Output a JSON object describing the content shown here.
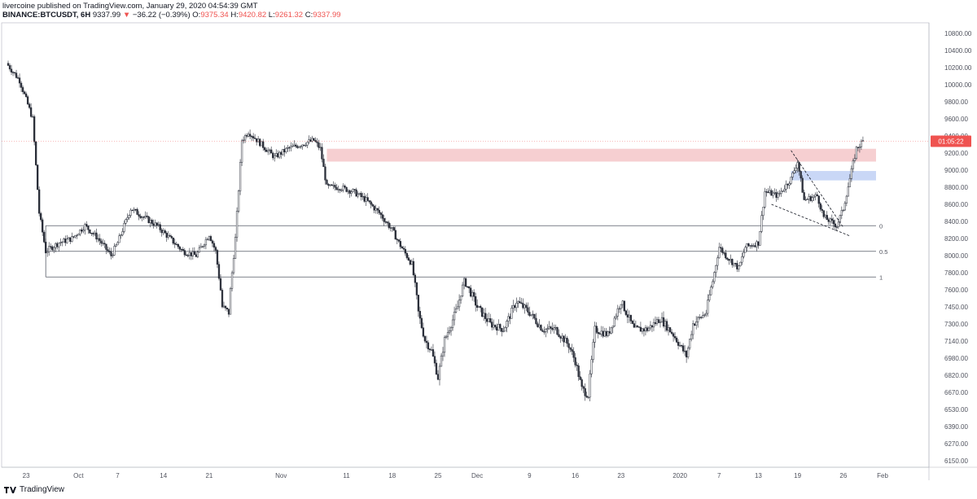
{
  "header": {
    "publisher": "livercoine published on TradingView.com, January 29, 2020 04:54:39 GMT",
    "symbol": "BINANCE:BTCUSDT, 6H",
    "last": "9337.99",
    "change_arrow": "▼",
    "change": "−36.22 (−0.39%)",
    "o_label": "O:",
    "o_value": "9375.34",
    "h_label": "H:",
    "h_value": "9420.82",
    "l_label": "L:",
    "l_value": "9261.32",
    "c_label": "C:",
    "c_value": "9337.99"
  },
  "footer": {
    "brand": "TradingView",
    "logo_icon": "tradingview-logo-icon"
  },
  "price_badge": "01:05:22",
  "colors": {
    "accent_down": "#ef5350",
    "candle": "#2a2e39",
    "resistance": "#f4c7c9",
    "support": "#c3d3f5",
    "grid": "#e6e8eb"
  },
  "chart_data": {
    "type": "candlestick",
    "title": "",
    "xlabel": "",
    "ylabel": "",
    "y_axis_side": "right",
    "ylim": [
      6150,
      10950
    ],
    "yticks": [
      "10800.00",
      "10400.00",
      "10200.00",
      "10000.00",
      "9800.00",
      "9600.00",
      "9400.00",
      "9200.00",
      "9000.00",
      "8800.00",
      "8600.00",
      "8400.00",
      "8200.00",
      "8000.00",
      "7800.00",
      "7600.00",
      "7450.00",
      "7300.00",
      "7140.00",
      "6980.00",
      "6820.00",
      "6670.00",
      "6530.00",
      "6390.00",
      "6270.00",
      "6150.00"
    ],
    "yticks_values": [
      10800,
      10400,
      10200,
      10000,
      9800,
      9600,
      9400,
      9200,
      9000,
      8800,
      8600,
      8400,
      8200,
      8000,
      7800,
      7600,
      7450,
      7300,
      7140,
      6980,
      6820,
      6670,
      6530,
      6390,
      6270,
      6150
    ],
    "xticks": [
      "23",
      "Oct",
      "7",
      "14",
      "21",
      "Nov",
      "11",
      "18",
      "25",
      "Dec",
      "9",
      "16",
      "23",
      "2020",
      "7",
      "13",
      "19",
      "26",
      "Feb"
    ],
    "xticks_dates": [
      "2019-09-23",
      "2019-10-01",
      "2019-10-07",
      "2019-10-14",
      "2019-10-21",
      "2019-11-01",
      "2019-11-11",
      "2019-11-18",
      "2019-11-25",
      "2019-12-01",
      "2019-12-09",
      "2019-12-16",
      "2019-12-23",
      "2020-01-01",
      "2020-01-07",
      "2020-01-13",
      "2020-01-19",
      "2020-01-26",
      "2020-02-01"
    ],
    "series": [
      {
        "close_path": [
          [
            "2019-09-20",
            10250
          ],
          [
            "2019-09-22",
            10050
          ],
          [
            "2019-09-24",
            9600
          ],
          [
            "2019-09-25",
            8500
          ],
          [
            "2019-09-26",
            8050
          ],
          [
            "2019-09-28",
            8150
          ],
          [
            "2019-09-30",
            8200
          ],
          [
            "2019-10-02",
            8350
          ],
          [
            "2019-10-04",
            8200
          ],
          [
            "2019-10-06",
            8000
          ],
          [
            "2019-10-07",
            8150
          ],
          [
            "2019-10-09",
            8550
          ],
          [
            "2019-10-11",
            8450
          ],
          [
            "2019-10-13",
            8350
          ],
          [
            "2019-10-15",
            8200
          ],
          [
            "2019-10-17",
            8050
          ],
          [
            "2019-10-19",
            8000
          ],
          [
            "2019-10-21",
            8250
          ],
          [
            "2019-10-22",
            8050
          ],
          [
            "2019-10-23",
            7450
          ],
          [
            "2019-10-24",
            7400
          ],
          [
            "2019-10-25",
            8200
          ],
          [
            "2019-10-26",
            9350
          ],
          [
            "2019-10-27",
            9450
          ],
          [
            "2019-10-29",
            9300
          ],
          [
            "2019-10-31",
            9150
          ],
          [
            "2019-11-02",
            9250
          ],
          [
            "2019-11-04",
            9300
          ],
          [
            "2019-11-06",
            9350
          ],
          [
            "2019-11-07",
            9250
          ],
          [
            "2019-11-08",
            8800
          ],
          [
            "2019-11-10",
            8800
          ],
          [
            "2019-11-12",
            8750
          ],
          [
            "2019-11-14",
            8650
          ],
          [
            "2019-11-16",
            8500
          ],
          [
            "2019-11-18",
            8300
          ],
          [
            "2019-11-19",
            8150
          ],
          [
            "2019-11-21",
            7900
          ],
          [
            "2019-11-22",
            7400
          ],
          [
            "2019-11-23",
            7150
          ],
          [
            "2019-11-24",
            7050
          ],
          [
            "2019-11-25",
            6800
          ],
          [
            "2019-11-26",
            7150
          ],
          [
            "2019-11-28",
            7450
          ],
          [
            "2019-11-29",
            7700
          ],
          [
            "2019-12-01",
            7450
          ],
          [
            "2019-12-03",
            7300
          ],
          [
            "2019-12-05",
            7250
          ],
          [
            "2019-12-07",
            7500
          ],
          [
            "2019-12-09",
            7400
          ],
          [
            "2019-12-11",
            7250
          ],
          [
            "2019-12-13",
            7250
          ],
          [
            "2019-12-15",
            7100
          ],
          [
            "2019-12-16",
            6950
          ],
          [
            "2019-12-17",
            6700
          ],
          [
            "2019-12-18",
            6650
          ],
          [
            "2019-12-19",
            7250
          ],
          [
            "2019-12-21",
            7200
          ],
          [
            "2019-12-23",
            7500
          ],
          [
            "2019-12-25",
            7250
          ],
          [
            "2019-12-27",
            7250
          ],
          [
            "2019-12-29",
            7350
          ],
          [
            "2019-12-31",
            7200
          ],
          [
            "2020-01-02",
            7000
          ],
          [
            "2020-01-03",
            7300
          ],
          [
            "2020-01-05",
            7400
          ],
          [
            "2020-01-06",
            7700
          ],
          [
            "2020-01-07",
            8100
          ],
          [
            "2020-01-08",
            8000
          ],
          [
            "2020-01-10",
            7850
          ],
          [
            "2020-01-11",
            8100
          ],
          [
            "2020-01-13",
            8150
          ],
          [
            "2020-01-14",
            8750
          ],
          [
            "2020-01-16",
            8700
          ],
          [
            "2020-01-18",
            8900
          ],
          [
            "2020-01-19",
            9100
          ],
          [
            "2020-01-20",
            8650
          ],
          [
            "2020-01-22",
            8700
          ],
          [
            "2020-01-23",
            8450
          ],
          [
            "2020-01-24",
            8400
          ],
          [
            "2020-01-25",
            8350
          ],
          [
            "2020-01-26",
            8550
          ],
          [
            "2020-01-27",
            8900
          ],
          [
            "2020-01-28",
            9250
          ],
          [
            "2020-01-29",
            9338
          ]
        ]
      }
    ],
    "annotations": {
      "resistance_zone": {
        "from": "2019-11-08",
        "to": "2020-01-31",
        "low": 9100,
        "high": 9250
      },
      "support_zone": {
        "from": "2020-01-18",
        "to": "2020-01-31",
        "low": 8880,
        "high": 8990
      },
      "fib_levels": [
        {
          "label": "0",
          "price": 8350
        },
        {
          "label": "0.5",
          "price": 8050
        },
        {
          "label": "1",
          "price": 7750
        }
      ],
      "fib_from": "2019-09-26",
      "fib_to": "2020-01-31"
    }
  }
}
